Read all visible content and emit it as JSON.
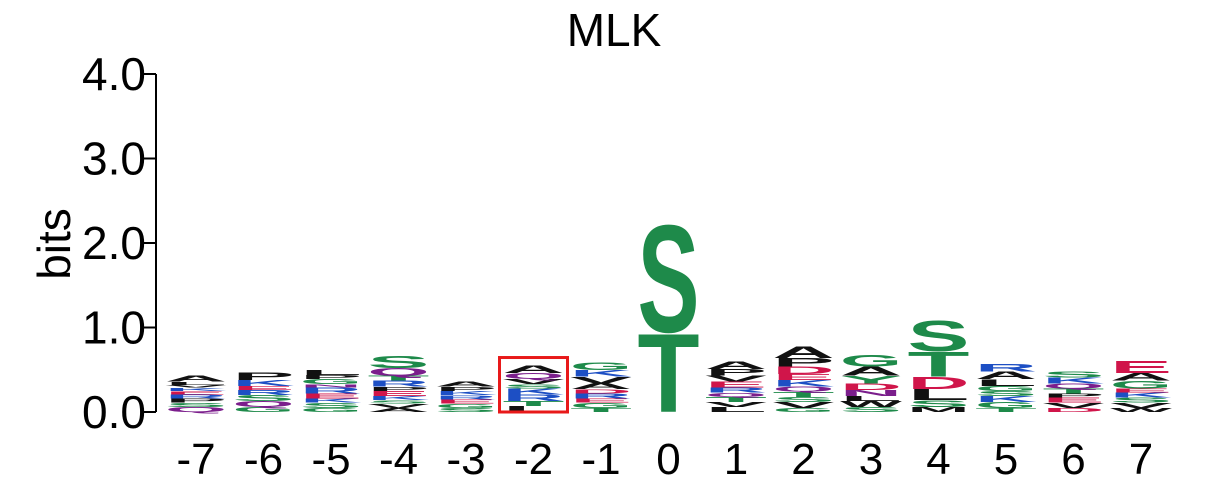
{
  "chart_data": {
    "type": "sequence-logo",
    "title": "MLK",
    "ylabel": "bits",
    "ylim": [
      0,
      4
    ],
    "yticks": [
      "0.0",
      "1.0",
      "2.0",
      "3.0",
      "4.0"
    ],
    "positions": [
      {
        "label": "-7",
        "stack": [
          [
            "Q",
            0.06
          ],
          [
            "S",
            0.05
          ],
          [
            "P",
            0.05
          ],
          [
            "R",
            0.05
          ],
          [
            "E",
            0.04
          ],
          [
            "K",
            0.04
          ],
          [
            "V",
            0.03
          ],
          [
            "L",
            0.04
          ],
          [
            "A",
            0.07
          ]
        ]
      },
      {
        "label": "-6",
        "stack": [
          [
            "G",
            0.06
          ],
          [
            "Q",
            0.07
          ],
          [
            "S",
            0.07
          ],
          [
            "R",
            0.06
          ],
          [
            "E",
            0.05
          ],
          [
            "K",
            0.07
          ],
          [
            "P",
            0.09
          ]
        ]
      },
      {
        "label": "-5",
        "stack": [
          [
            "G",
            0.05
          ],
          [
            "S",
            0.06
          ],
          [
            "K",
            0.05
          ],
          [
            "E",
            0.06
          ],
          [
            "R",
            0.07
          ],
          [
            "N",
            0.04
          ],
          [
            "G",
            0.06
          ],
          [
            "P",
            0.05
          ],
          [
            "L",
            0.06
          ]
        ]
      },
      {
        "label": "-4",
        "stack": [
          [
            "A",
            0.05
          ],
          [
            "V",
            0.05
          ],
          [
            "S",
            0.04
          ],
          [
            "K",
            0.05
          ],
          [
            "E",
            0.06
          ],
          [
            "P",
            0.05
          ],
          [
            "R",
            0.07
          ],
          [
            "T",
            0.06
          ],
          [
            "Q",
            0.09
          ],
          [
            "S",
            0.15
          ]
        ]
      },
      {
        "label": "-3",
        "stack": [
          [
            "S",
            0.05
          ],
          [
            "G",
            0.05
          ],
          [
            "E",
            0.05
          ],
          [
            "R",
            0.05
          ],
          [
            "K",
            0.05
          ],
          [
            "P",
            0.05
          ],
          [
            "A",
            0.06
          ]
        ]
      },
      {
        "label": "-2",
        "stack": [
          [
            "L",
            0.07
          ],
          [
            "T",
            0.06
          ],
          [
            "R",
            0.08
          ],
          [
            "K",
            0.07
          ],
          [
            "S",
            0.05
          ],
          [
            "V",
            0.06
          ],
          [
            "Q",
            0.07
          ],
          [
            "A",
            0.09
          ]
        ]
      },
      {
        "label": "-1",
        "stack": [
          [
            "T",
            0.05
          ],
          [
            "G",
            0.06
          ],
          [
            "E",
            0.05
          ],
          [
            "R",
            0.06
          ],
          [
            "D",
            0.05
          ],
          [
            "A",
            0.07
          ],
          [
            "V",
            0.08
          ],
          [
            "K",
            0.08
          ],
          [
            "G",
            0.09
          ]
        ]
      },
      {
        "label": "0",
        "stack": [
          [
            "T",
            0.95
          ],
          [
            "S",
            1.3
          ]
        ]
      },
      {
        "label": "1",
        "stack": [
          [
            "L",
            0.06
          ],
          [
            "V",
            0.06
          ],
          [
            "T",
            0.06
          ],
          [
            "Q",
            0.05
          ],
          [
            "R",
            0.06
          ],
          [
            "E",
            0.07
          ],
          [
            "V",
            0.07
          ],
          [
            "P",
            0.08
          ],
          [
            "A",
            0.09
          ]
        ]
      },
      {
        "label": "2",
        "stack": [
          [
            "G",
            0.05
          ],
          [
            "V",
            0.07
          ],
          [
            "S",
            0.06
          ],
          [
            "T",
            0.06
          ],
          [
            "Q",
            0.06
          ],
          [
            "K",
            0.08
          ],
          [
            "E",
            0.07
          ],
          [
            "D",
            0.09
          ],
          [
            "P",
            0.1
          ],
          [
            "A",
            0.14
          ]
        ]
      },
      {
        "label": "3",
        "stack": [
          [
            "S",
            0.06
          ],
          [
            "W",
            0.07
          ],
          [
            "L",
            0.06
          ],
          [
            "N",
            0.07
          ],
          [
            "D",
            0.08
          ],
          [
            "Y",
            0.09
          ],
          [
            "A",
            0.11
          ],
          [
            "G",
            0.14
          ]
        ]
      },
      {
        "label": "4",
        "stack": [
          [
            "M",
            0.06
          ],
          [
            "S",
            0.08
          ],
          [
            "L",
            0.13
          ],
          [
            "D",
            0.15
          ],
          [
            "T",
            0.3
          ],
          [
            "S",
            0.37
          ]
        ]
      },
      {
        "label": "5",
        "stack": [
          [
            "T",
            0.05
          ],
          [
            "G",
            0.07
          ],
          [
            "K",
            0.07
          ],
          [
            "S",
            0.06
          ],
          [
            "G",
            0.06
          ],
          [
            "L",
            0.08
          ],
          [
            "A",
            0.09
          ],
          [
            "R",
            0.09
          ]
        ]
      },
      {
        "label": "6",
        "stack": [
          [
            "D",
            0.05
          ],
          [
            "V",
            0.06
          ],
          [
            "E",
            0.06
          ],
          [
            "P",
            0.05
          ],
          [
            "T",
            0.06
          ],
          [
            "Q",
            0.06
          ],
          [
            "K",
            0.07
          ],
          [
            "S",
            0.07
          ]
        ]
      },
      {
        "label": "7",
        "stack": [
          [
            "W",
            0.05
          ],
          [
            "V",
            0.06
          ],
          [
            "S",
            0.06
          ],
          [
            "K",
            0.06
          ],
          [
            "E",
            0.05
          ],
          [
            "G",
            0.09
          ],
          [
            "A",
            0.09
          ],
          [
            "E",
            0.15
          ]
        ]
      }
    ],
    "highlight_position": "-2",
    "highlight_color": "#E8191A",
    "colors": {
      "A": "#111111",
      "F": "#111111",
      "I": "#111111",
      "L": "#111111",
      "M": "#111111",
      "P": "#111111",
      "V": "#111111",
      "W": "#111111",
      "G": "#1E8A4A",
      "S": "#1E8A4A",
      "T": "#1E8A4A",
      "Y": "#1E8A4A",
      "C": "#1E8A4A",
      "N": "#7B1E8C",
      "Q": "#7B1E8C",
      "K": "#1D4FC4",
      "R": "#1D4FC4",
      "H": "#1D4FC4",
      "D": "#D0154A",
      "E": "#D0154A"
    }
  }
}
